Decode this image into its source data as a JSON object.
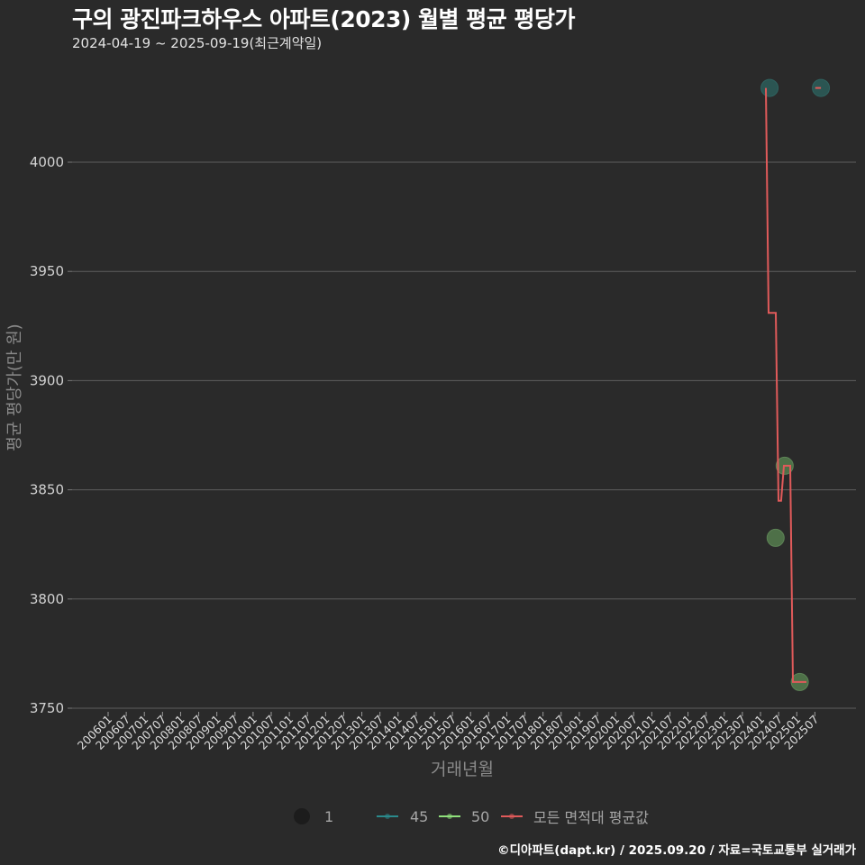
{
  "header": {
    "title": "구의 광진파크하우스 아파트(2023) 월별 평균 평당가",
    "subtitle": "2024-04-19 ~ 2025-09-19(최근계약일)"
  },
  "caption": "©디아파트(dapt.kr) / 2025.09.20 / 자료=국토교통부 실거래가",
  "legend": {
    "size_label": "1",
    "items": [
      {
        "label": "45",
        "color": "#2a8a8c"
      },
      {
        "label": "50",
        "color": "#8fe07b"
      },
      {
        "label": "모든 면적대 평균값",
        "color": "#e05a5a"
      }
    ]
  },
  "colors": {
    "background": "#2a2a2a",
    "grid": "#5e5e5e",
    "series_45_fill": "#2b5552",
    "series_50_fill": "#4e7048",
    "average_line": "#e05a5a"
  },
  "chart_data": {
    "type": "line",
    "title": "구의 광진파크하우스 아파트(2023) 월별 평균 평당가",
    "subtitle": "2024-04-19 ~ 2025-09-19(최근계약일)",
    "xlabel": "거래년월",
    "ylabel": "평균 평당가(만 원)",
    "ylim": [
      3750,
      4034
    ],
    "y_ticks": [
      3750,
      3800,
      3850,
      3900,
      3950,
      4000
    ],
    "x_ticks": [
      "200601",
      "200607",
      "200701",
      "200707",
      "200801",
      "200807",
      "200901",
      "200907",
      "201001",
      "201007",
      "201101",
      "201107",
      "201201",
      "201207",
      "201301",
      "201307",
      "201401",
      "201407",
      "201501",
      "201507",
      "201601",
      "201607",
      "201701",
      "201707",
      "201801",
      "201807",
      "201901",
      "201907",
      "202001",
      "202007",
      "202101",
      "202107",
      "202201",
      "202207",
      "202301",
      "202307",
      "202401",
      "202407",
      "202501",
      "202507"
    ],
    "grid": "horizontal",
    "legend_position": "bottom",
    "series": [
      {
        "name": "45",
        "kind": "scatter",
        "fill": "#2b5552",
        "stroke": "#2f6360",
        "points": [
          {
            "x": "2024-04",
            "y": 4034
          },
          {
            "x": "2025-09",
            "y": 4034
          }
        ]
      },
      {
        "name": "50",
        "kind": "scatter",
        "fill": "#4e7048",
        "stroke": "#5d8356",
        "points": [
          {
            "x": "2024-06",
            "y": 3828
          },
          {
            "x": "2024-09",
            "y": 3861
          },
          {
            "x": "2025-02",
            "y": 3762
          }
        ]
      },
      {
        "name": "모든 면적대 평균값",
        "kind": "line",
        "color": "#e05a5a",
        "segments": [
          [
            {
              "x": "2024-02-24",
              "y": 4034
            },
            {
              "x": "2024-03-21",
              "y": 3931
            },
            {
              "x": "2024-06-03",
              "y": 3931
            },
            {
              "x": "2024-06-30",
              "y": 3845
            },
            {
              "x": "2024-07-26",
              "y": 3845
            },
            {
              "x": "2024-08-23",
              "y": 3861
            },
            {
              "x": "2024-10-26",
              "y": 3861
            },
            {
              "x": "2024-11-23",
              "y": 3762
            },
            {
              "x": "2025-04-07",
              "y": 3762
            }
          ],
          [
            {
              "x": "2025-07-05",
              "y": 4034
            },
            {
              "x": "2025-09-01",
              "y": 4034
            }
          ]
        ]
      }
    ]
  }
}
